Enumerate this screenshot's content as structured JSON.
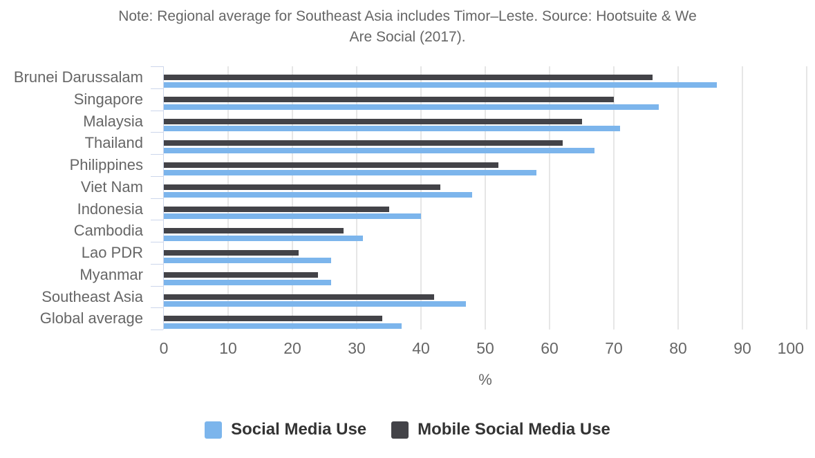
{
  "chart_data": {
    "type": "bar",
    "orientation": "horizontal",
    "title": "Note: Regional average for Southeast Asia includes Timor–Leste. Source: Hootsuite & We Are Social (2017).",
    "title_lines": [
      "Note: Regional average for Southeast Asia includes Timor–Leste. Source: Hootsuite & We",
      "Are Social (2017)."
    ],
    "categories": [
      "Brunei Darussalam",
      "Singapore",
      "Malaysia",
      "Thailand",
      "Philippines",
      "Viet Nam",
      "Indonesia",
      "Cambodia",
      "Lao PDR",
      "Myanmar",
      "Southeast Asia",
      "Global average"
    ],
    "series": [
      {
        "name": "Social Media Use",
        "color": "#7cb5ec",
        "values": [
          86,
          77,
          71,
          67,
          58,
          48,
          40,
          31,
          26,
          26,
          47,
          37
        ]
      },
      {
        "name": "Mobile Social Media Use",
        "color": "#434348",
        "values": [
          76,
          70,
          65,
          62,
          52,
          43,
          35,
          28,
          21,
          24,
          42,
          34
        ]
      }
    ],
    "bar_group_order": [
      "Mobile Social Media Use",
      "Social Media Use"
    ],
    "xlabel": "%",
    "xlim": [
      0,
      100
    ],
    "x_ticks": [
      0,
      10,
      20,
      30,
      40,
      50,
      60,
      70,
      80,
      90,
      100
    ],
    "grid": true,
    "legend_position": "bottom"
  },
  "colors": {
    "axis_line": "#ccd6eb",
    "gridline": "#e6e6e6",
    "axis_text": "#666666",
    "title_text": "#666666",
    "legend_text": "#333333"
  }
}
